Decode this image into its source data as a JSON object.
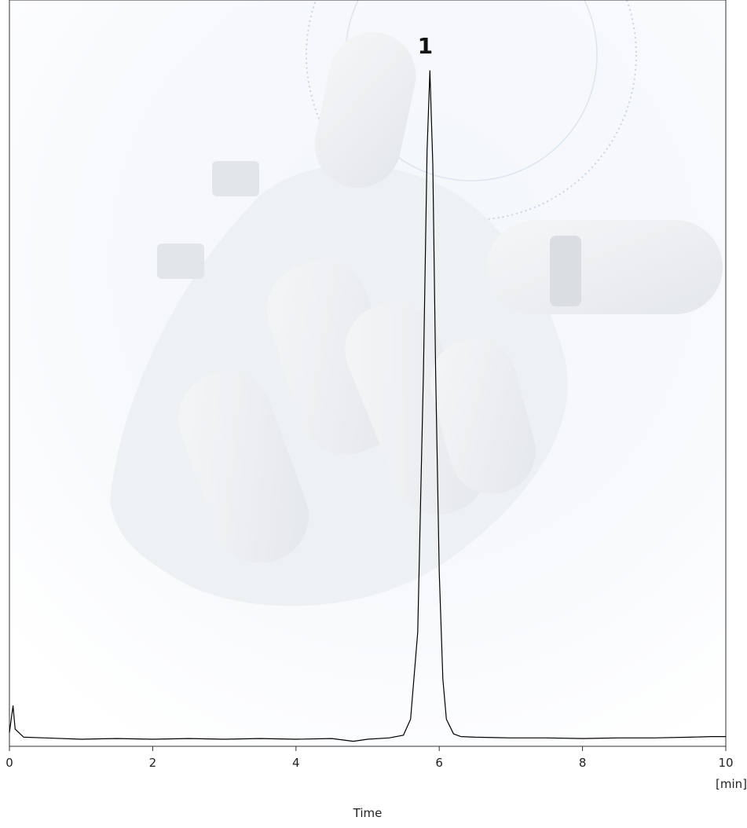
{
  "chart_data": {
    "type": "line",
    "title": "",
    "xlabel": "Time",
    "xunit": "[min]",
    "ylabel": "",
    "xlim": [
      0,
      10
    ],
    "x_ticks": [
      0,
      2,
      4,
      6,
      8,
      10
    ],
    "grid": false,
    "legend": "none",
    "background": "faded photo of a robotic hand (decorative watermark)",
    "line_color": "#000000",
    "series": [
      {
        "values_xy": [
          [
            0.0,
            0.01
          ],
          [
            0.05,
            0.05
          ],
          [
            0.08,
            0.015
          ],
          [
            0.2,
            0.003
          ],
          [
            0.5,
            0.002
          ],
          [
            1.0,
            0.0
          ],
          [
            1.5,
            0.001
          ],
          [
            2.0,
            0.0
          ],
          [
            2.5,
            0.001
          ],
          [
            3.0,
            0.0
          ],
          [
            3.5,
            0.001
          ],
          [
            4.0,
            0.0
          ],
          [
            4.5,
            0.001
          ],
          [
            4.8,
            -0.003
          ],
          [
            5.0,
            0.0
          ],
          [
            5.3,
            0.002
          ],
          [
            5.5,
            0.006
          ],
          [
            5.6,
            0.03
          ],
          [
            5.7,
            0.16
          ],
          [
            5.78,
            0.55
          ],
          [
            5.83,
            0.88
          ],
          [
            5.87,
            1.0
          ],
          [
            5.91,
            0.86
          ],
          [
            5.95,
            0.55
          ],
          [
            6.0,
            0.25
          ],
          [
            6.05,
            0.09
          ],
          [
            6.1,
            0.03
          ],
          [
            6.2,
            0.008
          ],
          [
            6.3,
            0.004
          ],
          [
            6.5,
            0.003
          ],
          [
            7.0,
            0.002
          ],
          [
            7.5,
            0.002
          ],
          [
            8.0,
            0.001
          ],
          [
            8.5,
            0.002
          ],
          [
            9.0,
            0.002
          ],
          [
            9.5,
            0.003
          ],
          [
            9.8,
            0.004
          ],
          [
            10.0,
            0.004
          ]
        ]
      }
    ],
    "peaks": [
      {
        "label": "1",
        "x": 5.87,
        "y": 1.0
      }
    ]
  }
}
